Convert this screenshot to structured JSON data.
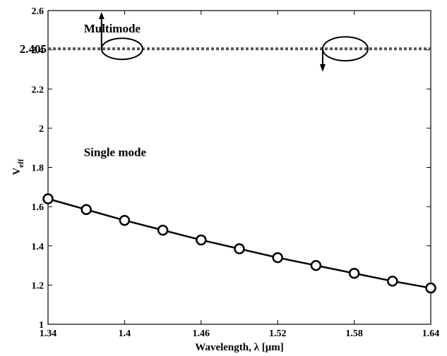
{
  "chart_data": {
    "type": "line",
    "xlabel": "Wavelength, λ [μm]",
    "ylabel_main": "V",
    "ylabel_sub": "eff",
    "xlim": [
      1.34,
      1.64
    ],
    "ylim": [
      1,
      2.6
    ],
    "xticks": [
      "1.34",
      "1.4",
      "1.46",
      "1.52",
      "1.58",
      "1.64"
    ],
    "yticks": [
      "1",
      "1.2",
      "1.4",
      "1.6",
      "1.8",
      "2",
      "2.2",
      "2.4",
      "2.6"
    ],
    "threshold": {
      "value": 2.405,
      "label": "2.405",
      "style": "dotted"
    },
    "series": [
      {
        "marker": "circle",
        "x": [
          1.34,
          1.37,
          1.4,
          1.43,
          1.46,
          1.49,
          1.52,
          1.55,
          1.58,
          1.61,
          1.64
        ],
        "y": [
          1.64,
          1.585,
          1.53,
          1.48,
          1.43,
          1.385,
          1.34,
          1.3,
          1.26,
          1.22,
          1.185
        ]
      }
    ],
    "annotations": [
      {
        "text": "Multimode",
        "x": 1.357,
        "y": 2.51
      },
      {
        "text": "Single mode",
        "x": 1.357,
        "y": 1.88
      }
    ],
    "grid": false
  }
}
